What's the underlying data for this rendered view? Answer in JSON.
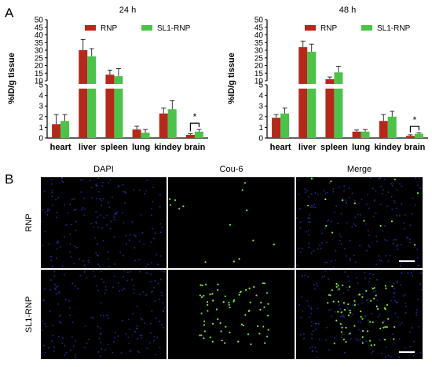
{
  "panel_a_label": "A",
  "panel_b_label": "B",
  "colors": {
    "rnp": "#b5281c",
    "sl1": "#4dc24a",
    "bg_micro": "#000000",
    "dapi": "#2b34c4",
    "cou6": "#7ee83a",
    "scale_bar": "#ffffff"
  },
  "chart_data": [
    {
      "type": "bar",
      "title": "24 h",
      "ylabel": "%ID/g tissue",
      "categories": [
        "heart",
        "liver",
        "spleen",
        "lung",
        "kindey",
        "brain"
      ],
      "series": [
        {
          "name": "RNP",
          "values": [
            1.3,
            30,
            14,
            0.8,
            2.3,
            0.3
          ],
          "errors": [
            0.9,
            7,
            3,
            0.3,
            0.5,
            0.1
          ]
        },
        {
          "name": "SL1-RNP",
          "values": [
            1.6,
            26,
            13,
            0.5,
            2.7,
            0.6
          ],
          "errors": [
            0.6,
            5,
            5,
            0.3,
            0.8,
            0.2
          ]
        }
      ],
      "axis_break": {
        "lower_range": [
          0,
          5
        ],
        "upper_range": [
          10,
          50
        ]
      },
      "lower_ticks": [
        "0",
        "1",
        "2",
        "3",
        "4",
        "5"
      ],
      "upper_ticks": [
        "10",
        "15",
        "20",
        "25",
        "30",
        "35",
        "40",
        "45",
        "50"
      ],
      "significance": {
        "category": "brain",
        "label": "*"
      },
      "legend_placement": "top"
    },
    {
      "type": "bar",
      "title": "48 h",
      "ylabel": "%ID/g tissue",
      "categories": [
        "heart",
        "liver",
        "spleen",
        "lung",
        "kindey",
        "brain"
      ],
      "series": [
        {
          "name": "RNP",
          "values": [
            1.9,
            32,
            11,
            0.6,
            1.6,
            0.2
          ],
          "errors": [
            0.3,
            4,
            1.5,
            0.15,
            0.6,
            0.1
          ]
        },
        {
          "name": "SL1-RNP",
          "values": [
            2.3,
            29,
            15.5,
            0.6,
            2.0,
            0.4
          ],
          "errors": [
            0.5,
            5,
            4,
            0.2,
            0.5,
            0.1
          ]
        }
      ],
      "axis_break": {
        "lower_range": [
          0,
          5
        ],
        "upper_range": [
          10,
          50
        ]
      },
      "lower_ticks": [
        "0",
        "1",
        "2",
        "3",
        "4",
        "5"
      ],
      "upper_ticks": [
        "10",
        "15",
        "20",
        "25",
        "30",
        "35",
        "40",
        "45",
        "50"
      ],
      "significance": {
        "category": "brain",
        "label": "*"
      },
      "legend_placement": "top"
    }
  ],
  "micrographs": {
    "columns": [
      "DAPI",
      "Cou-6",
      "Merge"
    ],
    "rows": [
      "RNP",
      "SL1-RNP"
    ]
  }
}
